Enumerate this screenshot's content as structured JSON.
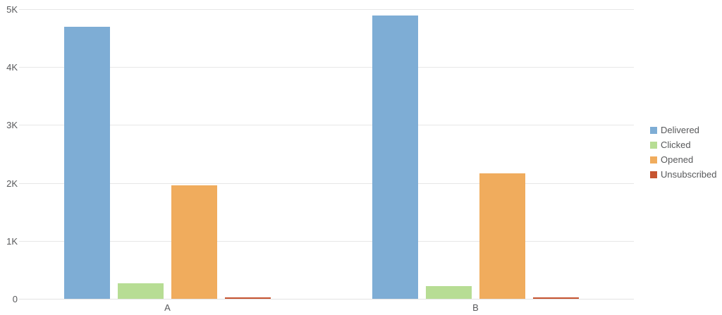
{
  "chart_data": {
    "type": "bar",
    "title": "",
    "xlabel": "",
    "ylabel": "",
    "categories": [
      "A",
      "B"
    ],
    "series": [
      {
        "name": "Delivered",
        "color": "#7eadd5",
        "values": [
          4690,
          4890
        ]
      },
      {
        "name": "Clicked",
        "color": "#b7dd94",
        "values": [
          270,
          220
        ]
      },
      {
        "name": "Opened",
        "color": "#f0ac5d",
        "values": [
          1960,
          2160
        ]
      },
      {
        "name": "Unsubscribed",
        "color": "#c65430",
        "values": [
          25,
          20
        ]
      }
    ],
    "ylim": [
      0,
      5000
    ],
    "yticks": [
      {
        "value": 0,
        "label": "0"
      },
      {
        "value": 1000,
        "label": "1K"
      },
      {
        "value": 2000,
        "label": "2K"
      },
      {
        "value": 3000,
        "label": "3K"
      },
      {
        "value": 4000,
        "label": "4K"
      },
      {
        "value": 5000,
        "label": "5K"
      }
    ],
    "grid": true,
    "legend_position": "right",
    "colors": {
      "tick_text": "#58595b",
      "gridline": "#e7e7e7",
      "background": "#ffffff"
    }
  }
}
